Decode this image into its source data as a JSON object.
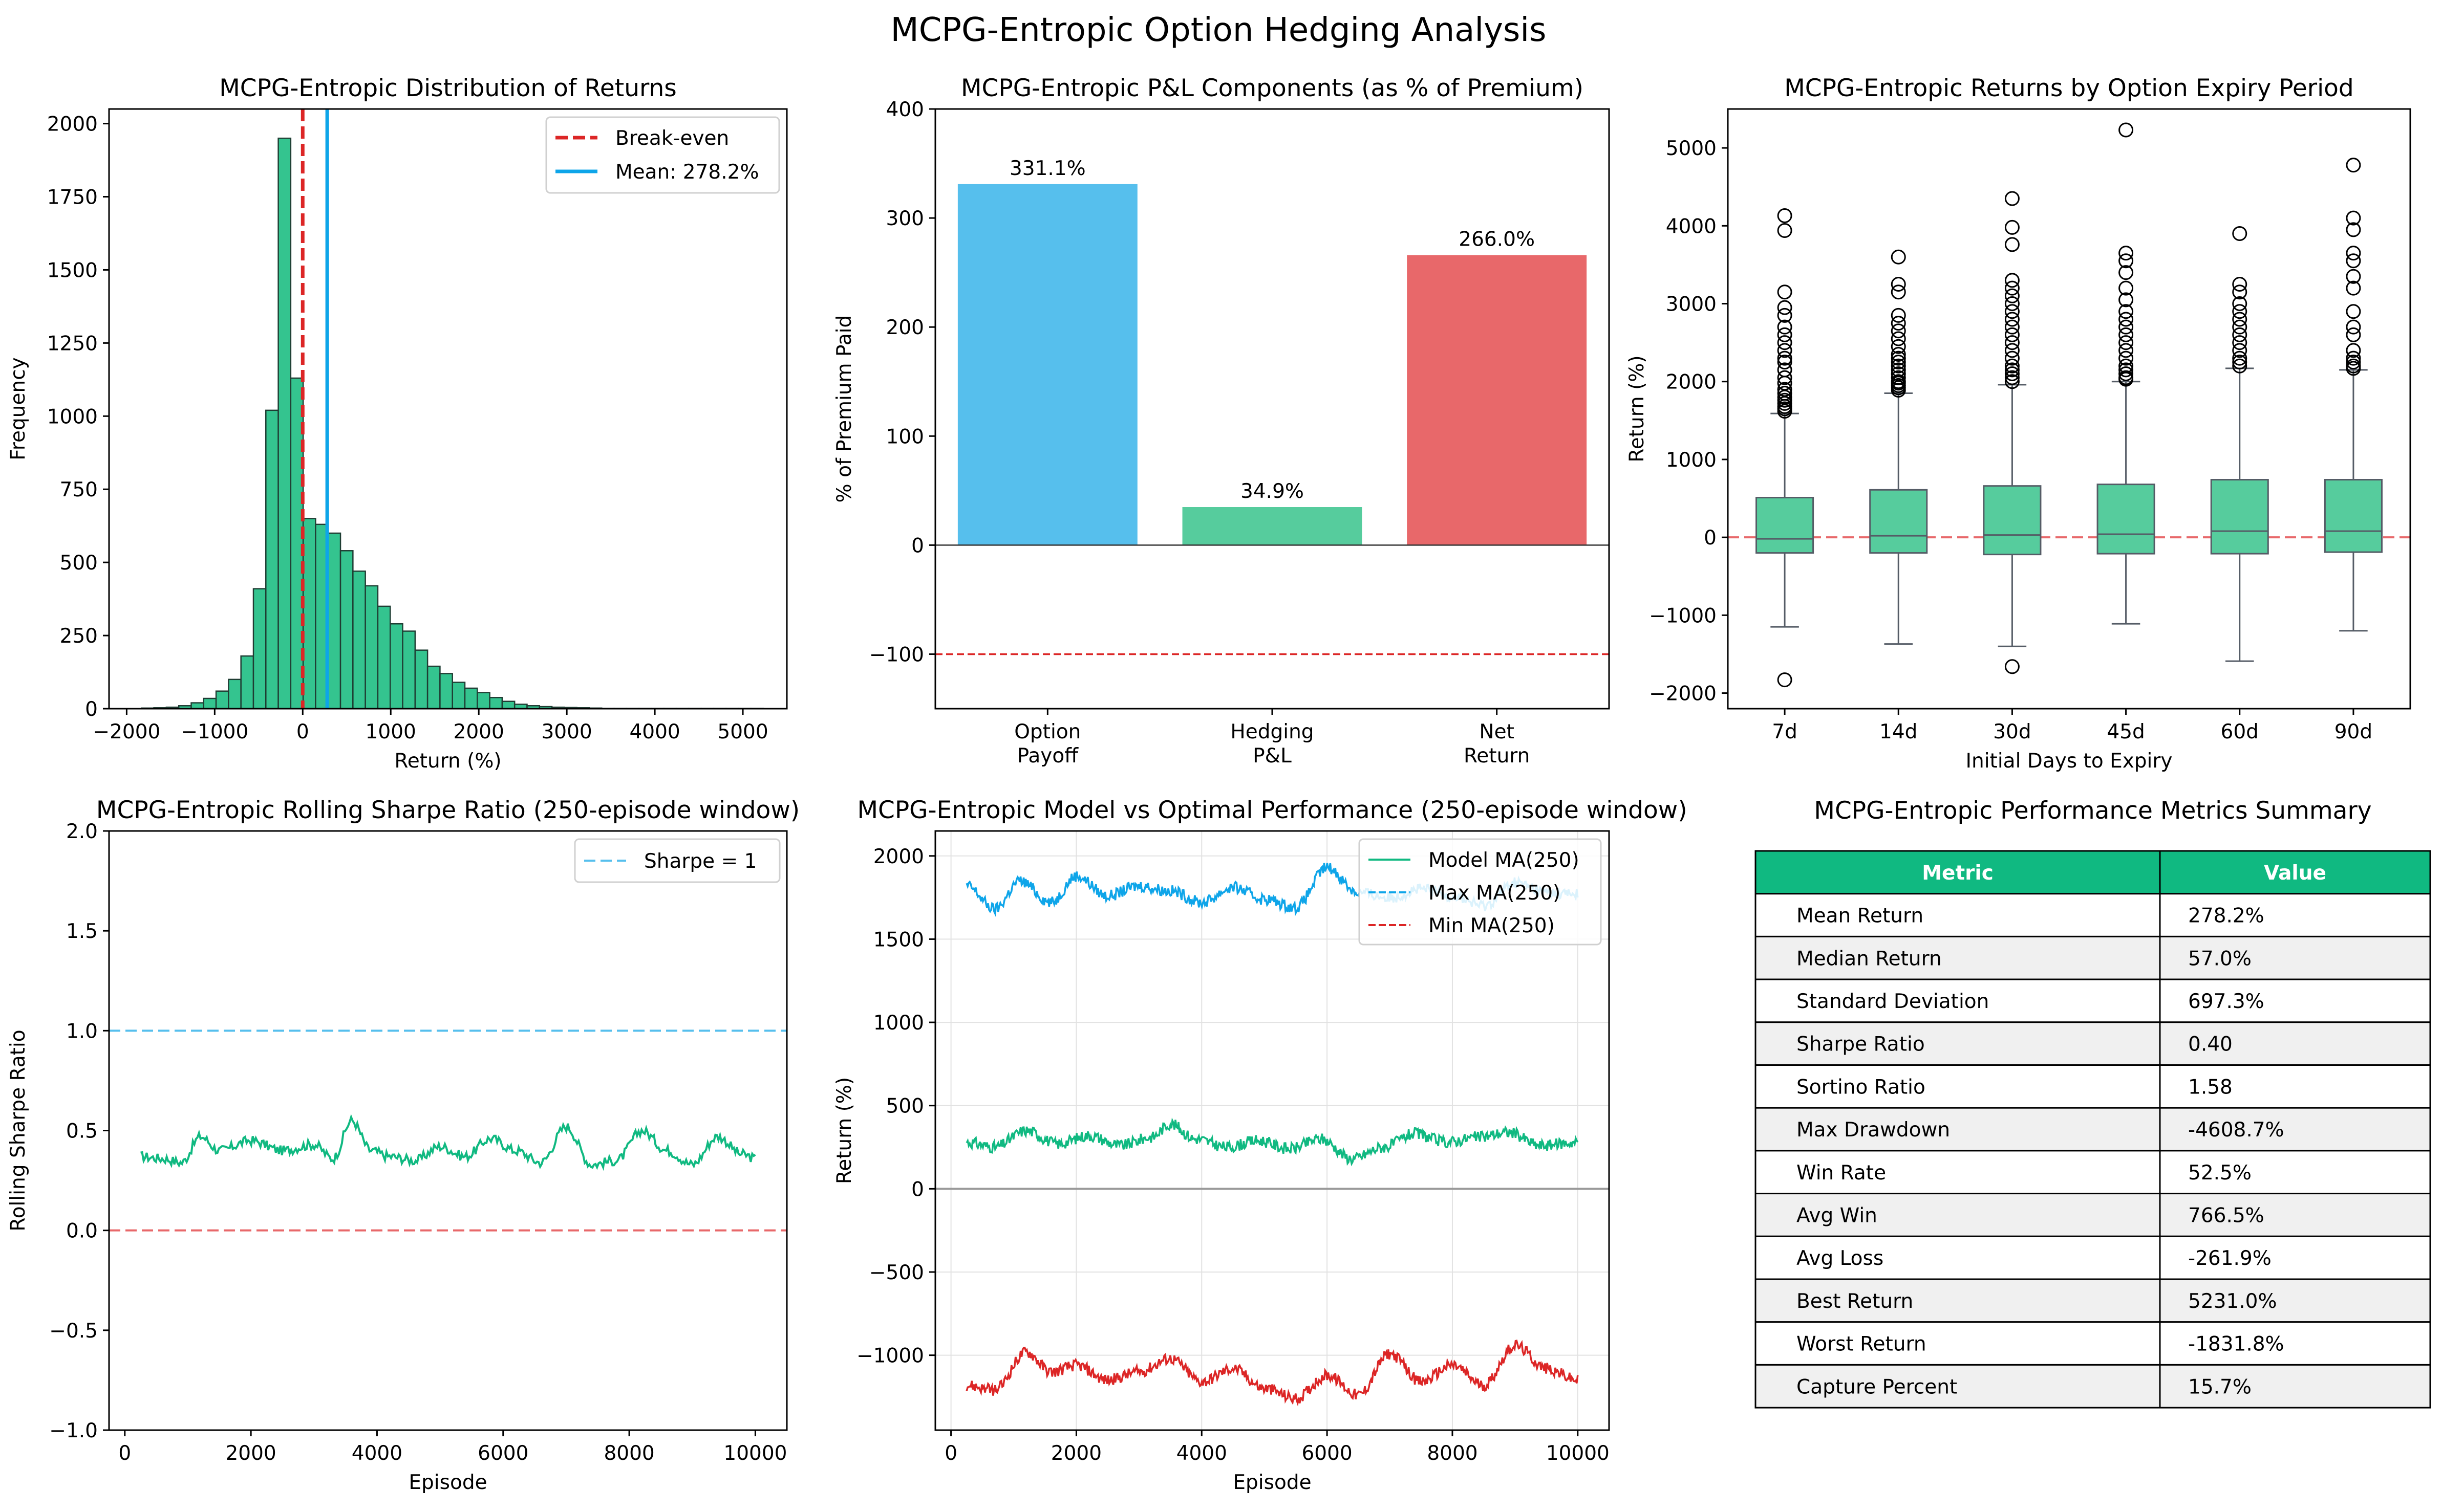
{
  "figure": {
    "title": "MCPG-Entropic Option Hedging Analysis"
  },
  "colors": {
    "green": "#10b981",
    "green_fill": "#34c48f",
    "blue": "#0ea5e9",
    "light_blue": "#56bfed",
    "red": "#dc2626",
    "light_red": "#e8686a",
    "box_fill": "#56cc9d",
    "header_green": "#10b981"
  },
  "chart_data": [
    {
      "id": "hist",
      "type": "bar",
      "title": "MCPG-Entropic Distribution of Returns",
      "xlabel": "Return (%)",
      "ylabel": "Frequency",
      "xlim": [
        -2200,
        5500
      ],
      "ylim": [
        0,
        2050
      ],
      "xticks": [
        -2000,
        -1000,
        0,
        1000,
        2000,
        3000,
        4000,
        5000
      ],
      "xtick_labels": [
        "−2000",
        "−1000",
        "0",
        "1000",
        "2000",
        "3000",
        "4000",
        "5000"
      ],
      "yticks": [
        0,
        250,
        500,
        750,
        1000,
        1250,
        1500,
        1750,
        2000
      ],
      "bin_start": -1831.8,
      "bin_width": 141.3,
      "counts": [
        2,
        3,
        5,
        10,
        20,
        35,
        60,
        100,
        180,
        410,
        1020,
        1950,
        1130,
        650,
        630,
        600,
        540,
        470,
        420,
        350,
        290,
        265,
        200,
        145,
        120,
        90,
        70,
        55,
        38,
        25,
        15,
        10,
        7,
        5,
        4,
        3,
        2,
        1,
        1,
        1,
        1,
        1,
        1,
        1,
        1,
        1,
        1,
        1,
        1,
        1
      ],
      "vlines": [
        {
          "x": 0,
          "label": "Break-even",
          "style": "dashed",
          "color": "#dc2626"
        },
        {
          "x": 278.2,
          "label": "Mean: 278.2%",
          "style": "solid",
          "color": "#0ea5e9"
        }
      ],
      "legend_position": "upper right"
    },
    {
      "id": "pnl",
      "type": "bar",
      "title": "MCPG-Entropic P&L Components (as % of Premium)",
      "ylabel": "% of Premium Paid",
      "categories": [
        [
          "Option",
          "Payoff"
        ],
        [
          "Hedging",
          "P&L"
        ],
        [
          "Net",
          "Return"
        ]
      ],
      "values": [
        331.1,
        34.9,
        266.0
      ],
      "value_labels": [
        "331.1%",
        "34.9%",
        "266.0%"
      ],
      "bar_colors": [
        "#56bfed",
        "#56cc9d",
        "#e8686a"
      ],
      "ylim": [
        -150,
        400
      ],
      "yticks": [
        -100,
        0,
        100,
        200,
        300,
        400
      ],
      "ytick_labels": [
        "−100",
        "0",
        "100",
        "200",
        "300",
        "400"
      ],
      "hlines": [
        {
          "y": 0,
          "style": "solid",
          "color": "#333333"
        },
        {
          "y": -100,
          "style": "dashed",
          "color": "#dc2626"
        }
      ]
    },
    {
      "id": "box",
      "type": "box",
      "title": "MCPG-Entropic Returns by Option Expiry Period",
      "xlabel": "Initial Days to Expiry",
      "ylabel": "Return (%)",
      "categories": [
        "7d",
        "14d",
        "30d",
        "45d",
        "60d",
        "90d"
      ],
      "ylim": [
        -2200,
        5500
      ],
      "yticks": [
        -2000,
        -1000,
        0,
        1000,
        2000,
        3000,
        4000,
        5000
      ],
      "ytick_labels": [
        "−2000",
        "−1000",
        "0",
        "1000",
        "2000",
        "3000",
        "4000",
        "5000"
      ],
      "boxes": [
        {
          "q1": -200,
          "median": -20,
          "q3": 510,
          "whislo": -1150,
          "whishi": 1590,
          "fliers": [
            4130,
            3940,
            3150,
            2950,
            2850,
            2700,
            2600,
            2500,
            2400,
            2300,
            2250,
            2150,
            2050,
            1980,
            1900,
            1850,
            1800,
            1760,
            1720,
            1680,
            1650,
            1620,
            -1830
          ]
        },
        {
          "q1": -200,
          "median": 20,
          "q3": 610,
          "whislo": -1370,
          "whishi": 1850,
          "fliers": [
            3600,
            3250,
            3150,
            2850,
            2750,
            2650,
            2550,
            2450,
            2350,
            2300,
            2250,
            2200,
            2150,
            2100,
            2050,
            2000,
            1980,
            1950,
            1920,
            1890
          ]
        },
        {
          "q1": -220,
          "median": 30,
          "q3": 660,
          "whislo": -1400,
          "whishi": 1960,
          "fliers": [
            4350,
            3980,
            3760,
            3300,
            3200,
            3100,
            3000,
            2900,
            2800,
            2700,
            2600,
            2500,
            2400,
            2300,
            2200,
            2150,
            2100,
            2050,
            2000,
            -1660
          ]
        },
        {
          "q1": -210,
          "median": 40,
          "q3": 680,
          "whislo": -1110,
          "whishi": 2000,
          "fliers": [
            5231,
            3650,
            3550,
            3400,
            3200,
            3050,
            2900,
            2800,
            2700,
            2600,
            2500,
            2400,
            2300,
            2200,
            2150,
            2100,
            2050,
            2030
          ]
        },
        {
          "q1": -210,
          "median": 80,
          "q3": 740,
          "whislo": -1590,
          "whishi": 2170,
          "fliers": [
            3900,
            3250,
            3150,
            3000,
            2900,
            2800,
            2700,
            2600,
            2500,
            2400,
            2300,
            2250,
            2200
          ]
        },
        {
          "q1": -190,
          "median": 80,
          "q3": 740,
          "whislo": -1200,
          "whishi": 2150,
          "fliers": [
            4780,
            4100,
            3950,
            3650,
            3550,
            3350,
            3200,
            2900,
            2700,
            2600,
            2400,
            2300,
            2250,
            2200,
            2170
          ]
        }
      ],
      "hlines": [
        {
          "y": 0,
          "style": "dashed",
          "color": "#e8686a"
        }
      ]
    },
    {
      "id": "sharpe",
      "type": "line",
      "title": "MCPG-Entropic Rolling Sharpe Ratio (250-episode window)",
      "xlabel": "Episode",
      "ylabel": "Rolling Sharpe Ratio",
      "xlim": [
        -250,
        10500
      ],
      "ylim": [
        -1.0,
        2.0
      ],
      "xticks": [
        0,
        2000,
        4000,
        6000,
        8000,
        10000
      ],
      "yticks": [
        -1.0,
        -0.5,
        0.0,
        0.5,
        1.0,
        1.5,
        2.0
      ],
      "ytick_labels": [
        "−1.0",
        "−0.5",
        "0.0",
        "0.5",
        "1.0",
        "1.5",
        "2.0"
      ],
      "x_range": [
        250,
        10000
      ],
      "anchors": {
        "x": [
          250,
          600,
          900,
          1200,
          1500,
          2000,
          2500,
          3000,
          3300,
          3600,
          3900,
          4200,
          4600,
          5000,
          5400,
          5800,
          6200,
          6600,
          7000,
          7400,
          7800,
          8200,
          8600,
          9000,
          9400,
          9800,
          10000
        ],
        "y": [
          0.37,
          0.36,
          0.34,
          0.47,
          0.4,
          0.45,
          0.4,
          0.43,
          0.36,
          0.55,
          0.4,
          0.37,
          0.35,
          0.42,
          0.37,
          0.46,
          0.4,
          0.34,
          0.52,
          0.33,
          0.35,
          0.5,
          0.4,
          0.33,
          0.47,
          0.38,
          0.36
        ]
      },
      "hlines": [
        {
          "y": 1.0,
          "label": "Sharpe = 1",
          "style": "dashed",
          "color": "#56bfed"
        },
        {
          "y": 0.0,
          "style": "dashed",
          "color": "#e8686a"
        }
      ],
      "legend_position": "upper right",
      "series_color": "#10b981"
    },
    {
      "id": "mvo",
      "type": "line",
      "title": "MCPG-Entropic Model vs Optimal Performance (250-episode window)",
      "xlabel": "Episode",
      "ylabel": "Return (%)",
      "xlim": [
        -250,
        10500
      ],
      "ylim": [
        -1450,
        2150
      ],
      "xticks": [
        0,
        2000,
        4000,
        6000,
        8000,
        10000
      ],
      "yticks": [
        -1000,
        -500,
        0,
        500,
        1000,
        1500,
        2000
      ],
      "ytick_labels": [
        "−1000",
        "−500",
        "0",
        "500",
        "1000",
        "1500",
        "2000"
      ],
      "grid": true,
      "x_range": [
        250,
        10000
      ],
      "series": [
        {
          "name": "Model MA(250)",
          "style": "solid",
          "color": "#10b981",
          "anchors": {
            "x": [
              250,
              700,
              1200,
              1700,
              2200,
              2700,
              3200,
              3500,
              3900,
              4400,
              4900,
              5400,
              5900,
              6400,
              6900,
              7400,
              7900,
              8400,
              8900,
              9400,
              10000
            ],
            "y": [
              280,
              250,
              350,
              270,
              320,
              260,
              310,
              390,
              300,
              250,
              290,
              240,
              300,
              180,
              250,
              330,
              280,
              310,
              340,
              260,
              280
            ]
          }
        },
        {
          "name": "Max MA(250)",
          "style": "dashed",
          "color": "#0ea5e9",
          "anchors": {
            "x": [
              250,
              700,
              1100,
              1600,
              2000,
              2500,
              3000,
              3500,
              4000,
              4500,
              5000,
              5500,
              6000,
              6500,
              7000,
              7500,
              8000,
              8500,
              9000,
              9500,
              10000
            ],
            "y": [
              1820,
              1680,
              1850,
              1720,
              1880,
              1760,
              1820,
              1790,
              1720,
              1810,
              1740,
              1690,
              1930,
              1780,
              1750,
              1800,
              1760,
              1700,
              1840,
              1780,
              1770
            ]
          }
        },
        {
          "name": "Min MA(250)",
          "style": "dashed",
          "color": "#dc2626",
          "anchors": {
            "x": [
              250,
              700,
              1200,
              1600,
              2000,
              2500,
              3000,
              3500,
              4000,
              4500,
              5000,
              5500,
              6000,
              6500,
              7000,
              7500,
              8000,
              8500,
              9000,
              9500,
              10000
            ],
            "y": [
              -1180,
              -1210,
              -980,
              -1100,
              -1060,
              -1150,
              -1100,
              -1020,
              -1160,
              -1080,
              -1200,
              -1260,
              -1120,
              -1240,
              -990,
              -1160,
              -1060,
              -1180,
              -940,
              -1080,
              -1150
            ]
          }
        }
      ],
      "hlines": [
        {
          "y": 0,
          "style": "solid",
          "color": "#999999"
        }
      ],
      "legend_position": "upper right"
    },
    {
      "id": "metrics",
      "type": "table",
      "title": "MCPG-Entropic Performance Metrics Summary",
      "columns": [
        "Metric",
        "Value"
      ],
      "rows": [
        [
          "Mean Return",
          "278.2%"
        ],
        [
          "Median Return",
          "57.0%"
        ],
        [
          "Standard Deviation",
          "697.3%"
        ],
        [
          "Sharpe Ratio",
          "0.40"
        ],
        [
          "Sortino Ratio",
          "1.58"
        ],
        [
          "Max Drawdown",
          "-4608.7%"
        ],
        [
          "Win Rate",
          "52.5%"
        ],
        [
          "Avg Win",
          "766.5%"
        ],
        [
          "Avg Loss",
          "-261.9%"
        ],
        [
          "Best Return",
          "5231.0%"
        ],
        [
          "Worst Return",
          "-1831.8%"
        ],
        [
          "Capture Percent",
          "15.7%"
        ]
      ]
    }
  ]
}
